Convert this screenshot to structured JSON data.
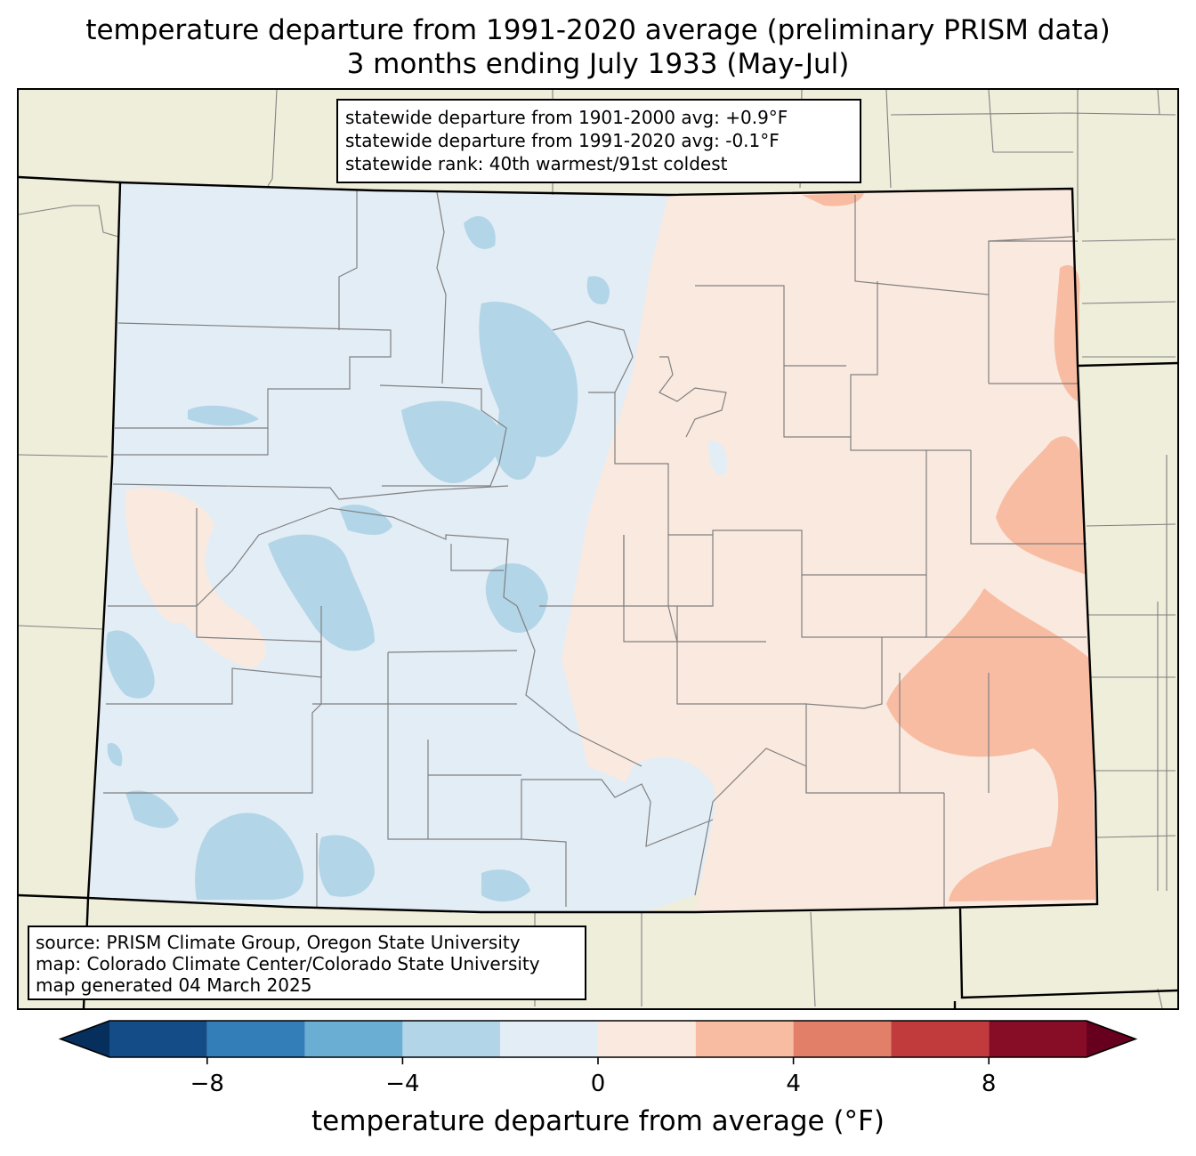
{
  "title": {
    "line1": "temperature departure from 1991-2020 average (preliminary PRISM data)",
    "line2": "3 months ending July 1933 (May-Jul)"
  },
  "stats": {
    "line1": "statewide departure from 1901-2000 avg: +0.9°F",
    "line2": "statewide departure from 1991-2020 avg: -0.1°F",
    "line3": "statewide rank: 40th warmest/91st coldest"
  },
  "source": {
    "line1": "source: PRISM Climate Group, Oregon State University",
    "line2": "map: Colorado Climate Center/Colorado State University",
    "line3": "map generated 04 March 2025"
  },
  "colorbar": {
    "label": "temperature departure from average (°F)",
    "ticks": [
      {
        "value": -8,
        "label": "−8"
      },
      {
        "value": -4,
        "label": "−4"
      },
      {
        "value": 0,
        "label": "0"
      },
      {
        "value": 4,
        "label": "4"
      },
      {
        "value": 8,
        "label": "8"
      }
    ],
    "min": -10,
    "max": 10,
    "bins": [
      {
        "from": -10,
        "to": -8,
        "color": "#134c87"
      },
      {
        "from": -8,
        "to": -6,
        "color": "#337eb8"
      },
      {
        "from": -6,
        "to": -4,
        "color": "#6aaed3"
      },
      {
        "from": -4,
        "to": -2,
        "color": "#b2d5e8"
      },
      {
        "from": -2,
        "to": 0,
        "color": "#e3edf5"
      },
      {
        "from": 0,
        "to": 2,
        "color": "#fae9df"
      },
      {
        "from": 2,
        "to": 4,
        "color": "#f8bca2"
      },
      {
        "from": 4,
        "to": 6,
        "color": "#e17f68"
      },
      {
        "from": 6,
        "to": 8,
        "color": "#c13b3c"
      },
      {
        "from": 8,
        "to": 10,
        "color": "#870c26"
      }
    ],
    "under_color": "#062f5e",
    "over_color": "#67001f"
  },
  "colors": {
    "land": "#efeedb",
    "county_line": "#808080",
    "state_line": "#000000"
  }
}
